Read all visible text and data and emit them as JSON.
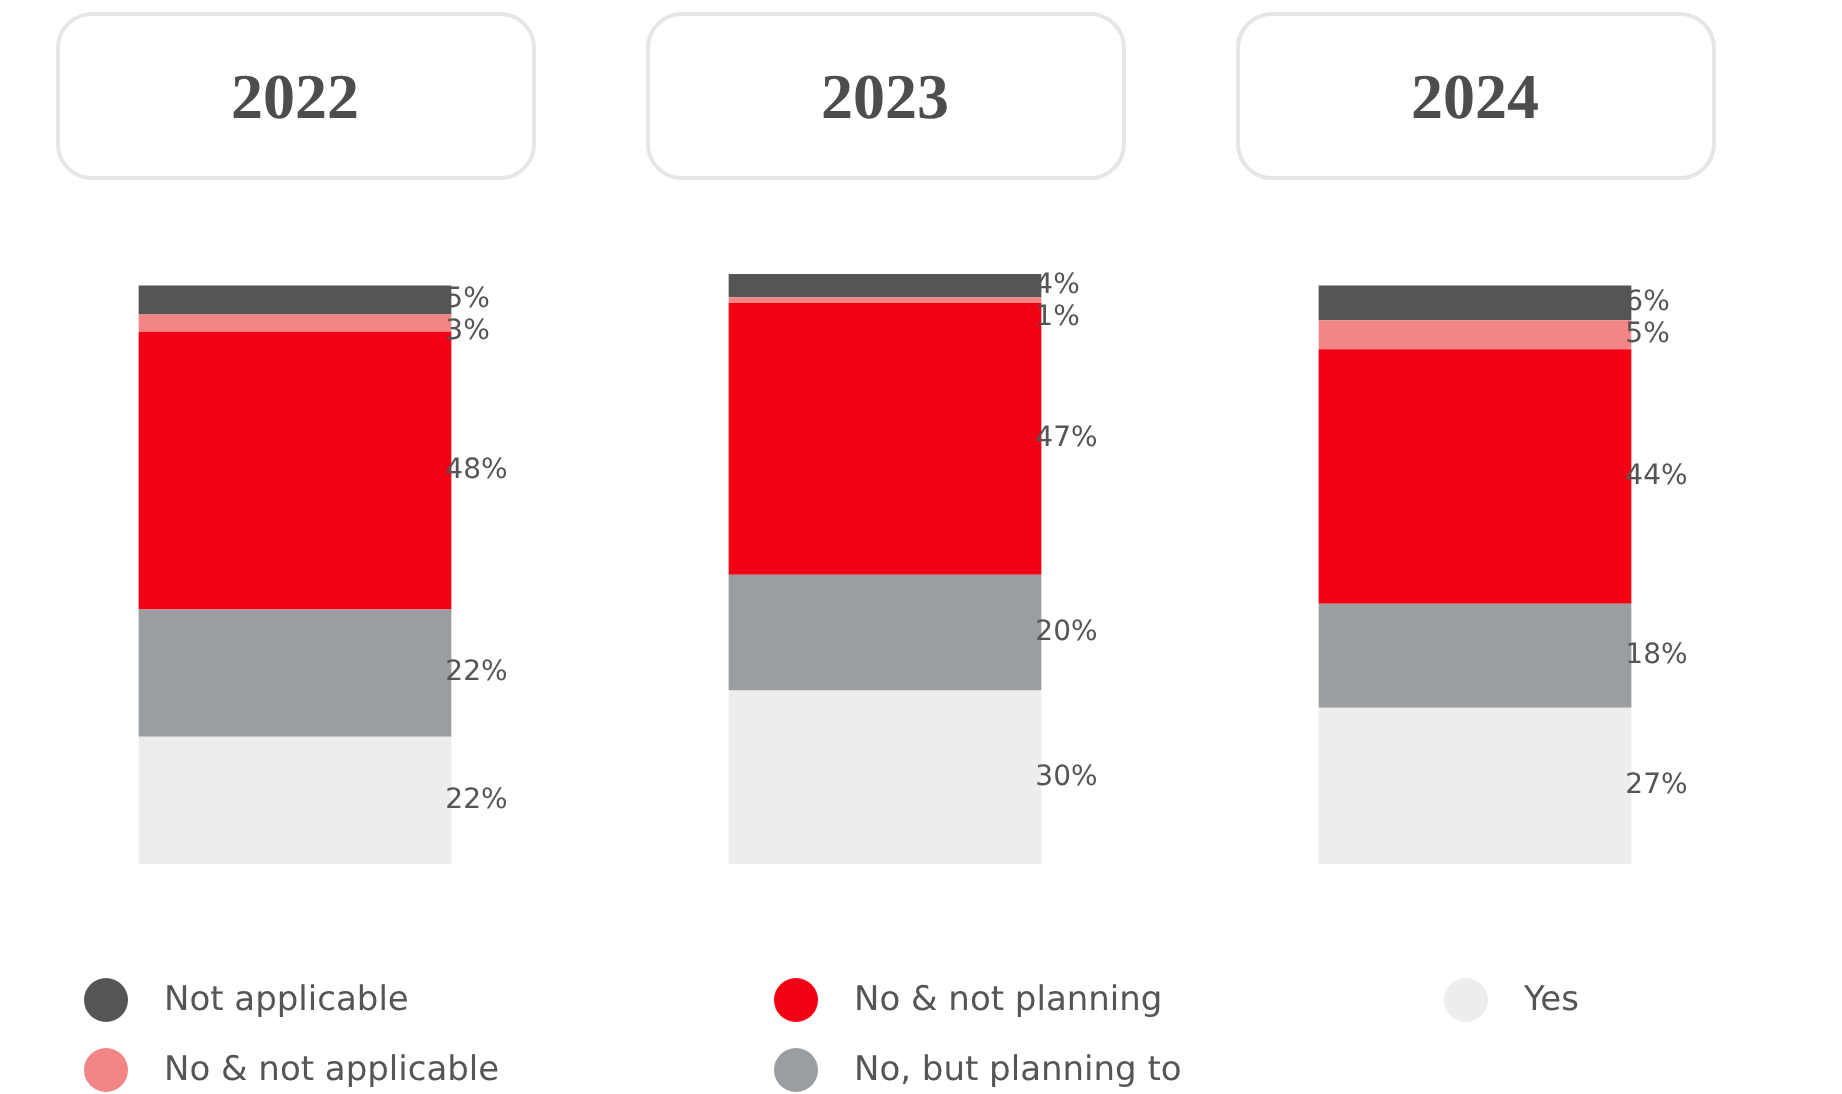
{
  "chart_data": {
    "type": "bar",
    "stacked": true,
    "categories": [
      "2022",
      "2023",
      "2024"
    ],
    "legend": "bottom",
    "series": [
      {
        "name": "Yes",
        "color": "#ededed",
        "values": [
          22,
          30,
          27
        ],
        "value_labels": [
          "22%",
          "30%",
          "27%"
        ]
      },
      {
        "name": "No, but planning to",
        "color": "#9b9ea1",
        "values": [
          22,
          20,
          18
        ],
        "value_labels": [
          "22%",
          "20%",
          "18%"
        ]
      },
      {
        "name": "No & not planning",
        "color": "#f20013",
        "values": [
          48,
          47,
          44
        ],
        "value_labels": [
          "48%",
          "47%",
          "44%"
        ]
      },
      {
        "name": "No & not applicable",
        "color": "#f28585",
        "values": [
          3,
          1,
          5
        ],
        "value_labels": [
          "3%",
          "1%",
          "5%"
        ]
      },
      {
        "name": "Not applicable",
        "color": "#555555",
        "values": [
          5,
          4,
          6
        ],
        "value_labels": [
          "5%",
          "4%",
          "6%"
        ]
      }
    ]
  }
}
